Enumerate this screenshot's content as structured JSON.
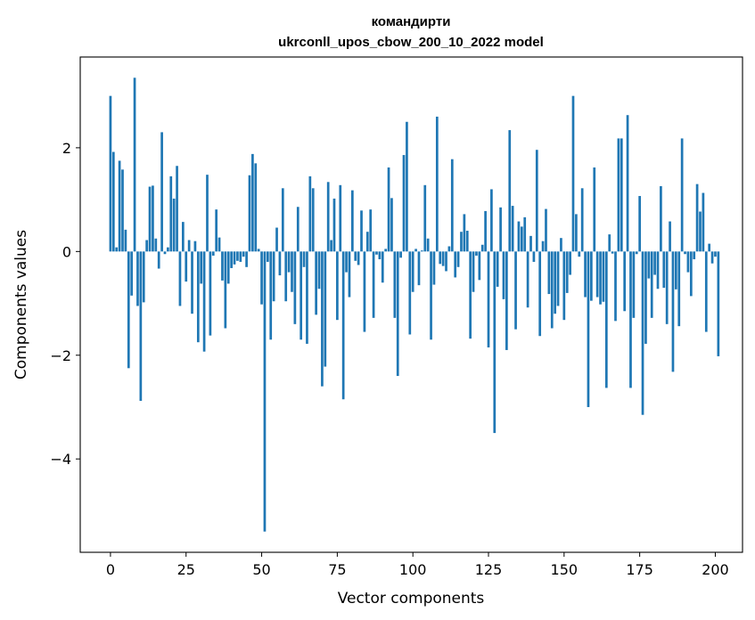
{
  "chart_data": {
    "type": "bar",
    "title": "командирти",
    "subtitle": "ukrconll_upos_cbow_200_10_2022 model",
    "xlabel": "Vector components",
    "ylabel": "Components values",
    "xlim": [
      -10,
      209
    ],
    "ylim": [
      -5.8,
      3.75
    ],
    "xticks": [
      0,
      25,
      50,
      75,
      100,
      125,
      150,
      175,
      200
    ],
    "yticks": [
      -4,
      -2,
      0,
      2
    ],
    "ytick_labels": [
      "−4",
      "−2",
      "0",
      "2"
    ],
    "grid": false,
    "bar_color": "#1f77b4",
    "values": [
      3.0,
      1.92,
      0.08,
      1.75,
      1.58,
      0.42,
      -2.25,
      -0.85,
      3.35,
      -1.05,
      -2.88,
      -0.98,
      0.22,
      1.25,
      1.27,
      0.25,
      -0.33,
      2.3,
      -0.05,
      0.08,
      1.45,
      1.02,
      1.65,
      -1.05,
      0.57,
      -0.58,
      0.22,
      -1.2,
      0.2,
      -1.75,
      -0.62,
      -1.93,
      1.48,
      -1.62,
      -0.08,
      0.81,
      0.27,
      -0.56,
      -1.48,
      -0.62,
      -0.32,
      -0.25,
      -0.18,
      -0.2,
      -0.1,
      -0.3,
      1.47,
      1.88,
      1.7,
      0.05,
      -1.02,
      -5.4,
      -0.2,
      -1.7,
      -0.96,
      0.46,
      -0.46,
      1.22,
      -0.96,
      -0.4,
      -0.78,
      -1.4,
      0.86,
      -1.7,
      -0.3,
      -1.78,
      1.45,
      1.22,
      -1.22,
      -0.72,
      -2.6,
      -2.22,
      1.34,
      0.22,
      1.02,
      -1.32,
      1.28,
      -2.85,
      -0.4,
      -0.88,
      1.18,
      -0.18,
      -0.26,
      0.79,
      -1.55,
      0.38,
      0.81,
      -1.28,
      -0.06,
      -0.15,
      -0.6,
      0.05,
      1.62,
      1.03,
      -1.28,
      -2.4,
      -0.12,
      1.86,
      2.5,
      -1.6,
      -0.78,
      0.05,
      -0.65,
      0.02,
      1.28,
      0.25,
      -1.7,
      -0.64,
      2.6,
      -0.24,
      -0.28,
      -0.38,
      0.1,
      1.78,
      -0.5,
      -0.3,
      0.38,
      0.72,
      0.4,
      -1.68,
      -0.78,
      -0.08,
      -0.55,
      0.13,
      0.78,
      -1.85,
      1.2,
      -3.5,
      -0.68,
      0.85,
      -0.92,
      -1.9,
      2.34,
      0.88,
      -1.5,
      0.58,
      0.48,
      0.66,
      -1.08,
      0.3,
      -0.2,
      1.96,
      -1.63,
      0.2,
      0.82,
      -0.82,
      -1.48,
      -1.2,
      -1.05,
      0.26,
      -1.32,
      -0.8,
      -0.45,
      3.0,
      0.72,
      -0.1,
      1.22,
      -0.88,
      -3.0,
      -0.95,
      1.62,
      -0.88,
      -1.02,
      -0.97,
      -2.63,
      0.33,
      -0.04,
      -1.34,
      2.18,
      2.18,
      -1.15,
      2.63,
      -2.63,
      -1.28,
      -0.05,
      1.07,
      -3.15,
      -1.78,
      -0.52,
      -1.28,
      -0.45,
      -0.72,
      1.26,
      -0.7,
      -1.4,
      0.58,
      -2.32,
      -0.73,
      -1.44,
      2.18,
      -0.05,
      -0.4,
      -0.86,
      -0.15,
      1.3,
      0.77,
      1.13,
      -1.55,
      0.15,
      -0.23,
      -0.1,
      -2.02
    ]
  }
}
